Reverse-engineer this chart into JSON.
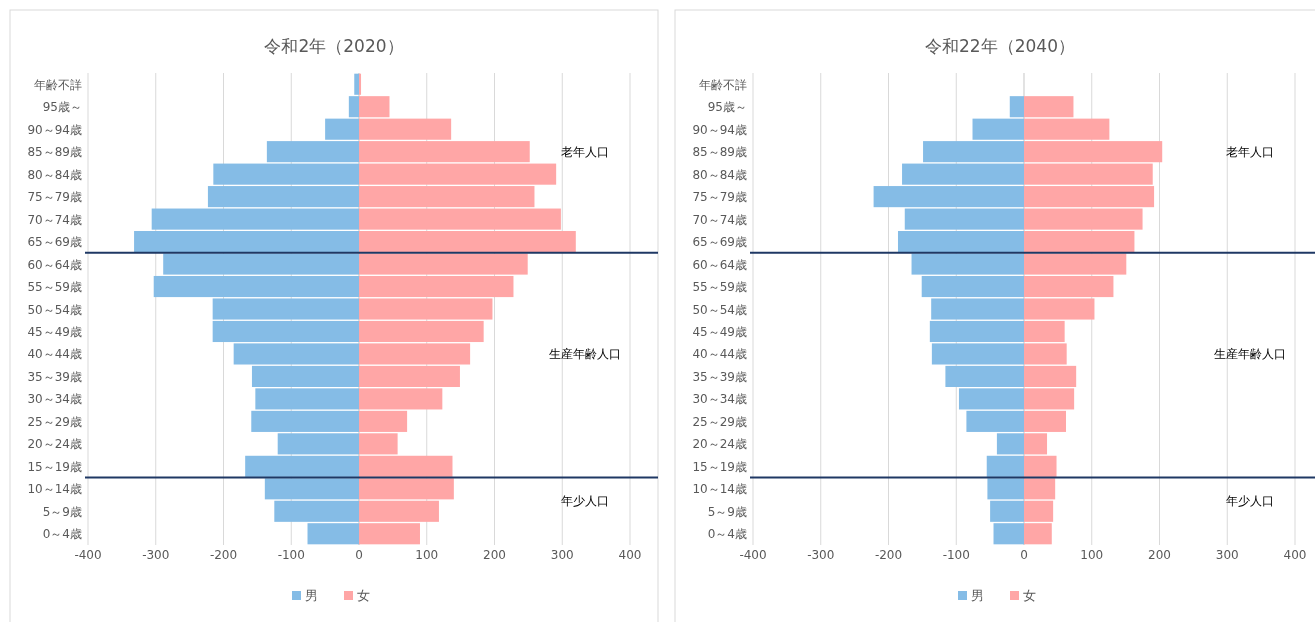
{
  "chart_data": [
    {
      "type": "bar",
      "title": "令和2年（2020）",
      "orientation": "horizontal",
      "stacked": true,
      "categories": [
        "年齢不詳",
        "95歳～",
        "90～94歳",
        "85～89歳",
        "80～84歳",
        "75～79歳",
        "70～74歳",
        "65～69歳",
        "60～64歳",
        "55～59歳",
        "50～54歳",
        "45～49歳",
        "40～44歳",
        "35～39歳",
        "30～34歳",
        "25～29歳",
        "20～24歳",
        "15～19歳",
        "10～14歳",
        "5～9歳",
        "0～4歳"
      ],
      "series": [
        {
          "name": "男",
          "color": "#85bce6",
          "values": [
            -7,
            -15,
            -50,
            -136,
            -215,
            -223,
            -306,
            -332,
            -289,
            -303,
            -216,
            -216,
            -185,
            -158,
            -153,
            -159,
            -120,
            -168,
            -139,
            -125,
            -76
          ]
        },
        {
          "name": "女",
          "color": "#ffa6a6",
          "values": [
            3,
            45,
            136,
            252,
            291,
            259,
            298,
            320,
            249,
            228,
            197,
            184,
            164,
            149,
            123,
            71,
            57,
            138,
            140,
            118,
            90
          ]
        }
      ],
      "xlim": [
        -400,
        400
      ],
      "xticks": [
        -400,
        -300,
        -200,
        -100,
        0,
        100,
        200,
        300,
        400
      ],
      "grid": "x",
      "legend": "bottom",
      "ref_lines": [
        {
          "axis": "y",
          "value": "65～69歳",
          "color": "#1f3864"
        },
        {
          "axis": "y",
          "value": "15～19歳",
          "color": "#1f3864"
        }
      ],
      "annotations": [
        "老年人口",
        "生産年齢人口",
        "年少人口"
      ]
    },
    {
      "type": "bar",
      "title": "令和22年（2040）",
      "orientation": "horizontal",
      "stacked": true,
      "categories": [
        "年齢不詳",
        "95歳～",
        "90～94歳",
        "85～89歳",
        "80～84歳",
        "75～79歳",
        "70～74歳",
        "65～69歳",
        "60～64歳",
        "55～59歳",
        "50～54歳",
        "45～49歳",
        "40～44歳",
        "35～39歳",
        "30～34歳",
        "25～29歳",
        "20～24歳",
        "15～19歳",
        "10～14歳",
        "5～9歳",
        "0～4歳"
      ],
      "series": [
        {
          "name": "男",
          "color": "#85bce6",
          "values": [
            null,
            -21,
            -76,
            -149,
            -180,
            -222,
            -176,
            -186,
            -166,
            -151,
            -137,
            -139,
            -136,
            -116,
            -96,
            -85,
            -40,
            -55,
            -54,
            -50,
            -45
          ]
        },
        {
          "name": "女",
          "color": "#ffa6a6",
          "values": [
            null,
            73,
            126,
            204,
            190,
            192,
            175,
            163,
            151,
            132,
            104,
            60,
            63,
            77,
            74,
            62,
            34,
            48,
            46,
            43,
            41
          ]
        }
      ],
      "xlim": [
        -400,
        400
      ],
      "xticks": [
        -400,
        -300,
        -200,
        -100,
        0,
        100,
        200,
        300,
        400
      ],
      "grid": "x",
      "legend": "bottom",
      "ref_lines": [
        {
          "axis": "y",
          "value": "65～69歳",
          "color": "#1f3864"
        },
        {
          "axis": "y",
          "value": "15～19歳",
          "color": "#1f3864"
        }
      ],
      "annotations": [
        "老年人口",
        "生産年齢人口",
        "年少人口"
      ]
    }
  ]
}
